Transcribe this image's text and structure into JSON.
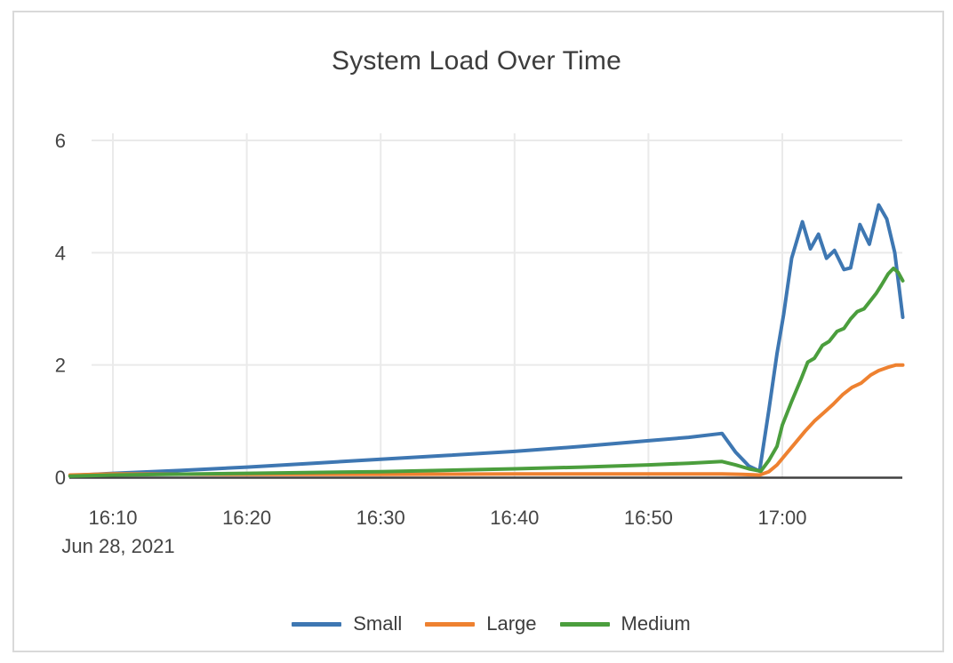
{
  "title": "System Load Over Time",
  "chart_data": {
    "type": "line",
    "title": "System Load Over Time",
    "x_axis": {
      "unit": "time of day on Jun 28, 2021 (values = minutes after 16:00)",
      "tick_labels": [
        "16:10",
        "16:20",
        "16:30",
        "16:40",
        "16:50",
        "17:00"
      ],
      "tick_positions": [
        10,
        20,
        30,
        40,
        50,
        60
      ],
      "date_label": "Jun 28, 2021",
      "range": [
        6.8,
        69.05
      ]
    },
    "y_axis": {
      "tick_labels": [
        "0",
        "2",
        "4",
        "6"
      ],
      "tick_values": [
        0,
        2,
        4,
        6
      ],
      "range": [
        0,
        6.35
      ],
      "zeroline": true
    },
    "grid": true,
    "legend": {
      "position": "bottom-center",
      "entries": [
        "Small",
        "Large",
        "Medium"
      ]
    },
    "series": [
      {
        "name": "Small",
        "color": "#3e77b2",
        "x": [
          6.8,
          10,
          15,
          20,
          25,
          30,
          35,
          40,
          45,
          50,
          53,
          55.5,
          56.5,
          57.5,
          58.3,
          59,
          59.6,
          60.1,
          60.7,
          61.5,
          62.1,
          62.7,
          63.3,
          63.9,
          64.6,
          65.1,
          65.8,
          66.5,
          67.2,
          67.8,
          68.4,
          69
        ],
        "y": [
          0.03,
          0.07,
          0.12,
          0.18,
          0.25,
          0.32,
          0.39,
          0.46,
          0.55,
          0.65,
          0.71,
          0.78,
          0.45,
          0.2,
          0.11,
          1.2,
          2.2,
          2.9,
          3.9,
          4.55,
          4.07,
          4.33,
          3.9,
          4.04,
          3.7,
          3.73,
          4.5,
          4.15,
          4.85,
          4.6,
          4.0,
          2.85
        ]
      },
      {
        "name": "Large",
        "color": "#ee8130",
        "x": [
          6.8,
          10,
          20,
          30,
          40,
          50,
          55.5,
          57,
          58.3,
          59,
          59.6,
          60.3,
          61,
          61.7,
          62.4,
          63.1,
          63.8,
          64.5,
          65.2,
          65.9,
          66.6,
          67.2,
          67.9,
          68.5,
          69
        ],
        "y": [
          0.04,
          0.06,
          0.05,
          0.05,
          0.06,
          0.06,
          0.06,
          0.05,
          0.04,
          0.1,
          0.22,
          0.42,
          0.62,
          0.82,
          1.0,
          1.15,
          1.3,
          1.47,
          1.6,
          1.68,
          1.82,
          1.9,
          1.96,
          2.0,
          2.0
        ]
      },
      {
        "name": "Medium",
        "color": "#4b9e3d",
        "x": [
          6.8,
          10,
          20,
          30,
          40,
          45,
          50,
          53,
          55.5,
          56.5,
          57.5,
          58.4,
          59,
          59.6,
          60,
          60.7,
          61.4,
          61.9,
          62.4,
          63,
          63.5,
          64.1,
          64.6,
          65.1,
          65.6,
          66.1,
          66.6,
          67,
          67.4,
          67.9,
          68.3,
          68.65,
          69
        ],
        "y": [
          0.02,
          0.04,
          0.07,
          0.1,
          0.15,
          0.18,
          0.22,
          0.25,
          0.28,
          0.22,
          0.15,
          0.11,
          0.3,
          0.55,
          0.93,
          1.35,
          1.75,
          2.05,
          2.12,
          2.35,
          2.42,
          2.6,
          2.65,
          2.82,
          2.95,
          3.0,
          3.15,
          3.27,
          3.42,
          3.62,
          3.72,
          3.65,
          3.5
        ]
      }
    ]
  },
  "colors": {
    "grid": "#eaeaea",
    "axis_line": "#404040",
    "tick_text": "#444444",
    "title_text": "#3d3d3d",
    "card_border": "#d9d9d9",
    "background": "#ffffff"
  }
}
